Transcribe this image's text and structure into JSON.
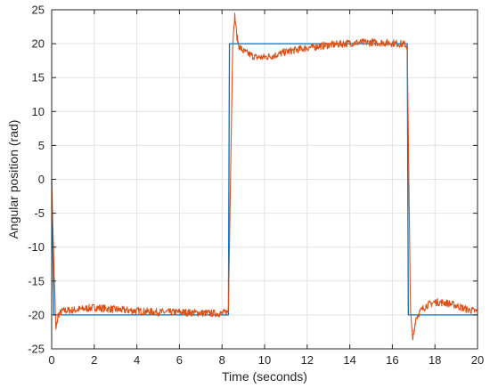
{
  "chart_data": {
    "type": "line",
    "title": "",
    "xlabel": "Time (seconds)",
    "ylabel": "Angular position (rad)",
    "xlim": [
      0,
      20
    ],
    "ylim": [
      -25,
      25
    ],
    "grid": true,
    "x_ticks": [
      0,
      2,
      4,
      6,
      8,
      10,
      12,
      14,
      16,
      18,
      20
    ],
    "y_ticks": [
      -25,
      -20,
      -15,
      -10,
      -5,
      0,
      5,
      10,
      15,
      20,
      25
    ],
    "x_tick_labels": [
      "0",
      "2",
      "4",
      "6",
      "8",
      "10",
      "12",
      "14",
      "16",
      "18",
      "20"
    ],
    "y_tick_labels": [
      "-25",
      "-20",
      "-15",
      "-10",
      "-5",
      "0",
      "5",
      "10",
      "15",
      "20",
      "25"
    ],
    "series": [
      {
        "color": "#0072BD",
        "x": [
          0,
          0.1,
          8.3,
          8.35,
          16.7,
          16.75,
          20
        ],
        "y": [
          0,
          -20,
          -20,
          20,
          20,
          -20,
          -20
        ]
      },
      {
        "color": "#D95319",
        "noisy": true,
        "x": [
          0,
          0.1,
          0.2,
          0.3,
          0.5,
          1.0,
          2.0,
          3.0,
          4.0,
          5.0,
          6.0,
          7.0,
          8.0,
          8.3,
          8.5,
          8.6,
          8.7,
          8.8,
          9.0,
          9.3,
          9.6,
          10.0,
          10.5,
          11.0,
          12.0,
          13.0,
          14.0,
          15.0,
          16.0,
          16.6,
          16.7,
          16.85,
          16.95,
          17.1,
          17.3,
          17.6,
          18.0,
          18.5,
          19.0,
          19.5,
          20.0
        ],
        "y": [
          0,
          -12,
          -22.3,
          -20,
          -19.4,
          -19.3,
          -18.9,
          -19.2,
          -19.4,
          -19.6,
          -19.6,
          -19.7,
          -19.8,
          -19.5,
          19.5,
          24.2,
          21.0,
          19.6,
          18.9,
          18.4,
          18.0,
          18.0,
          18.3,
          18.8,
          19.4,
          19.8,
          20.1,
          20.2,
          20.1,
          19.9,
          19.5,
          -19.0,
          -23.8,
          -20.5,
          -19.5,
          -18.6,
          -18.1,
          -18.2,
          -18.6,
          -19.2,
          -19.5
        ]
      }
    ]
  }
}
